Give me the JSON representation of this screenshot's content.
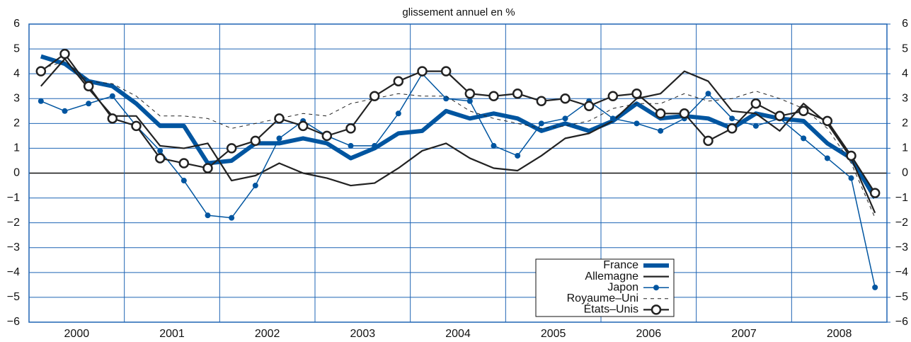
{
  "chart_data": {
    "type": "line",
    "title": "glissement annuel en %",
    "x": [
      2000.125,
      2000.375,
      2000.625,
      2000.875,
      2001.125,
      2001.375,
      2001.625,
      2001.875,
      2002.125,
      2002.375,
      2002.625,
      2002.875,
      2003.125,
      2003.375,
      2003.625,
      2003.875,
      2004.125,
      2004.375,
      2004.625,
      2004.875,
      2005.125,
      2005.375,
      2005.625,
      2005.875,
      2006.125,
      2006.375,
      2006.625,
      2006.875,
      2007.125,
      2007.375,
      2007.625,
      2007.875,
      2008.125,
      2008.375,
      2008.625,
      2008.875
    ],
    "xlim": [
      2000,
      2009
    ],
    "xticks": [
      {
        "value": 2000.5,
        "label": "2000"
      },
      {
        "value": 2001.5,
        "label": "2001"
      },
      {
        "value": 2002.5,
        "label": "2002"
      },
      {
        "value": 2003.5,
        "label": "2003"
      },
      {
        "value": 2004.5,
        "label": "2004"
      },
      {
        "value": 2005.5,
        "label": "2005"
      },
      {
        "value": 2006.5,
        "label": "2006"
      },
      {
        "value": 2007.5,
        "label": "2007"
      },
      {
        "value": 2008.5,
        "label": "2008"
      }
    ],
    "xgrid": [
      2001,
      2002,
      2003,
      2004,
      2005,
      2006,
      2007,
      2008
    ],
    "ylim": [
      -6,
      6
    ],
    "yticks": [
      {
        "value": -6,
        "label": "−6"
      },
      {
        "value": -5,
        "label": "−5"
      },
      {
        "value": -4,
        "label": "−4"
      },
      {
        "value": -3,
        "label": "−3"
      },
      {
        "value": -2,
        "label": "−2"
      },
      {
        "value": -1,
        "label": "−1"
      },
      0,
      1,
      2,
      3,
      4,
      5,
      6
    ],
    "y2lim": [
      -6,
      6
    ],
    "y2ticks": [
      {
        "value": -6,
        "label": "−6"
      },
      {
        "value": -5,
        "label": "−5"
      },
      {
        "value": -4,
        "label": "−4"
      },
      {
        "value": -3,
        "label": "−3"
      },
      {
        "value": -2,
        "label": "−2"
      },
      {
        "value": -1,
        "label": "−1"
      },
      0,
      1,
      2,
      3,
      4,
      5,
      6
    ],
    "grid": true,
    "legend": "bottom-right",
    "series": [
      {
        "name": "France",
        "color": "#0055a0",
        "values": [
          4.7,
          4.4,
          3.7,
          3.5,
          2.8,
          1.9,
          1.9,
          0.4,
          0.5,
          1.2,
          1.2,
          1.4,
          1.2,
          0.6,
          1.0,
          1.6,
          1.7,
          2.5,
          2.2,
          2.4,
          2.2,
          1.7,
          2.0,
          1.7,
          2.1,
          2.8,
          2.2,
          2.3,
          2.2,
          1.8,
          2.4,
          2.2,
          2.1,
          1.2,
          0.6,
          -1.0
        ]
      },
      {
        "name": "Allemagne",
        "color": "#222222",
        "values": [
          3.5,
          4.6,
          3.4,
          2.3,
          2.3,
          1.1,
          1.0,
          1.2,
          -0.3,
          -0.1,
          0.4,
          0.0,
          -0.2,
          -0.5,
          -0.4,
          0.2,
          0.9,
          1.2,
          0.6,
          0.2,
          0.1,
          0.7,
          1.4,
          1.6,
          2.1,
          3.0,
          3.2,
          4.1,
          3.7,
          2.5,
          2.4,
          1.7,
          2.8,
          2.0,
          0.6,
          -1.6
        ]
      },
      {
        "name": "Japon",
        "color": "#0055a0",
        "values": [
          2.9,
          2.5,
          2.8,
          3.1,
          1.9,
          0.9,
          -0.3,
          -1.7,
          -1.8,
          -0.5,
          1.4,
          2.1,
          1.5,
          1.1,
          1.1,
          2.4,
          4.0,
          3.0,
          2.9,
          1.1,
          0.7,
          2.0,
          2.2,
          2.9,
          2.2,
          2.0,
          1.7,
          2.2,
          3.2,
          2.2,
          1.9,
          2.2,
          1.4,
          0.6,
          -0.2,
          -4.6
        ]
      },
      {
        "name": "Royaume–Uni",
        "color": "#222222",
        "values": [
          4.2,
          4.5,
          3.7,
          3.6,
          3.1,
          2.3,
          2.3,
          2.2,
          1.8,
          2.0,
          2.2,
          2.4,
          2.3,
          2.8,
          3.0,
          3.2,
          3.1,
          3.1,
          2.5,
          2.2,
          2.0,
          1.8,
          1.9,
          2.1,
          2.6,
          2.8,
          2.8,
          3.2,
          2.9,
          3.0,
          3.3,
          3.0,
          2.6,
          1.8,
          0.4,
          -1.8
        ]
      },
      {
        "name": "États–Unis",
        "color": "#222222",
        "values": [
          4.1,
          4.8,
          3.5,
          2.2,
          1.9,
          0.6,
          0.4,
          0.2,
          1.0,
          1.3,
          2.2,
          1.9,
          1.5,
          1.8,
          3.1,
          3.7,
          4.1,
          4.1,
          3.2,
          3.1,
          3.2,
          2.9,
          3.0,
          2.7,
          3.1,
          3.2,
          2.4,
          2.4,
          1.3,
          1.8,
          2.8,
          2.3,
          2.5,
          2.1,
          0.7,
          -0.8
        ]
      }
    ]
  }
}
